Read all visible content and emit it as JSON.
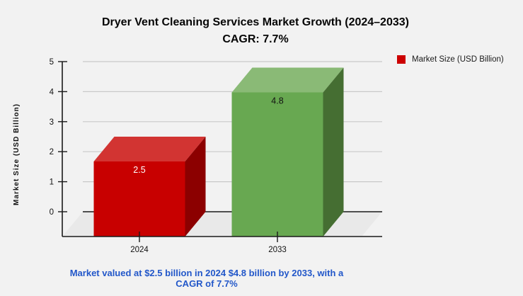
{
  "title": {
    "line1": "Dryer Vent Cleaning Services Market Growth (2024–2033)",
    "line2": "CAGR: 7.7%"
  },
  "legend": {
    "swatch_color": "#cc0000",
    "label": "Market Size (USD Billion)"
  },
  "caption": "Market valued at $2.5 billion in 2024 $4.8 billion by 2033, with a CAGR of 7.7%",
  "chart_data": {
    "type": "bar",
    "style": "3d",
    "title": "Dryer Vent Cleaning Services Market Growth (2024–2033) CAGR: 7.7%",
    "categories": [
      "2024",
      "2033"
    ],
    "series": [
      {
        "name": "Market Size (USD Billion)",
        "values": [
          2.5,
          4.8
        ]
      }
    ],
    "value_labels": [
      "2.5",
      "4.8"
    ],
    "xlabel": "",
    "ylabel": "Market Size (USD Billion)",
    "ylim": [
      0,
      5
    ],
    "yticks": [
      0,
      1,
      2,
      3,
      4,
      5
    ],
    "grid": true,
    "legend_position": "upper right",
    "background": "#f2f2f2",
    "floor_color": "#e9e9e9",
    "gridline_color": "#c9c9c9",
    "axis_color": "#1a1a1a",
    "bar_colors": [
      {
        "front": "#c80000",
        "top": "#d23432",
        "side": "#8c0000",
        "label_color": "#ffffff"
      },
      {
        "front": "#68a851",
        "top": "#8aba76",
        "side": "#456e32",
        "label_color": "#111111"
      }
    ]
  }
}
